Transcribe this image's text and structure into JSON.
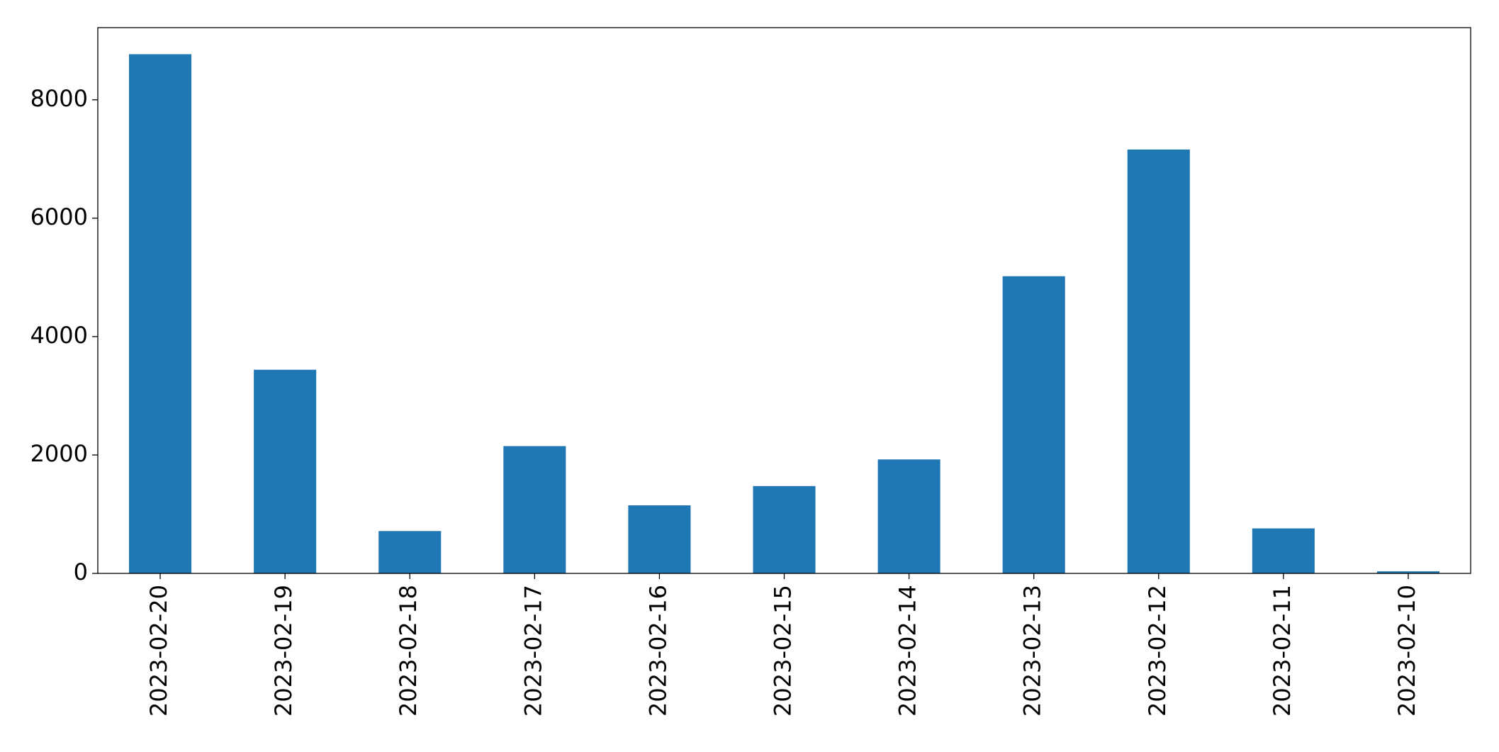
{
  "chart_data": {
    "type": "bar",
    "categories": [
      "2023-02-20",
      "2023-02-19",
      "2023-02-18",
      "2023-02-17",
      "2023-02-16",
      "2023-02-15",
      "2023-02-14",
      "2023-02-13",
      "2023-02-12",
      "2023-02-11",
      "2023-02-10"
    ],
    "values": [
      8770,
      3440,
      715,
      2150,
      1150,
      1475,
      1925,
      5020,
      7160,
      760,
      35
    ],
    "color": "#1f77b4",
    "ylim": [
      0,
      9219
    ],
    "yticks": [
      0,
      2000,
      4000,
      6000,
      8000
    ],
    "grid": false
  }
}
